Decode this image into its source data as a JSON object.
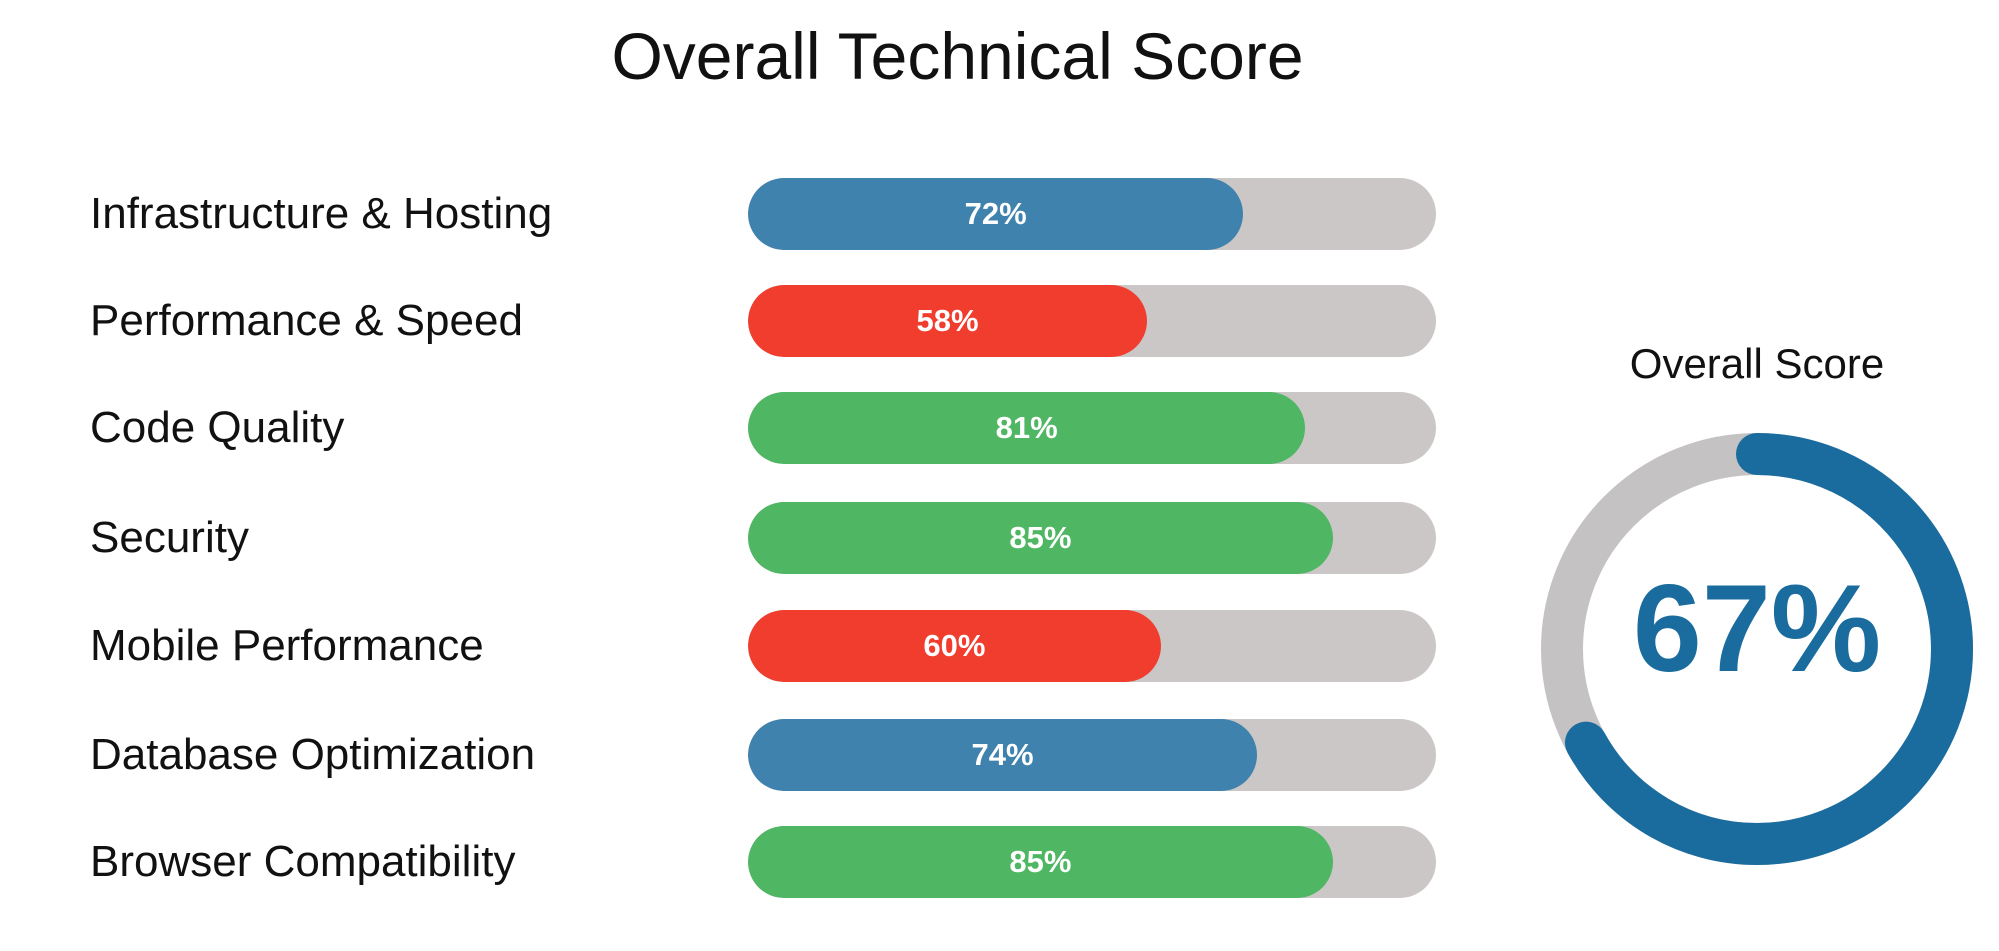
{
  "chart_data": [
    {
      "type": "bar",
      "orientation": "horizontal",
      "title": "Overall Technical Score",
      "categories": [
        "Infrastructure & Hosting",
        "Performance & Speed",
        "Code Quality",
        "Security",
        "Mobile Performance",
        "Database Optimization",
        "Browser Compatibility"
      ],
      "values": [
        72,
        58,
        81,
        85,
        60,
        74,
        85
      ],
      "value_labels": [
        "72%",
        "58%",
        "81%",
        "85%",
        "60%",
        "74%",
        "85%"
      ],
      "bar_colors": [
        "#3f82ad",
        "#f03d2e",
        "#4fb663",
        "#4fb663",
        "#f03d2e",
        "#3f82ad",
        "#4fb663"
      ],
      "track_color": "#cbc7c6",
      "xlim": [
        0,
        100
      ],
      "grid": false
    },
    {
      "type": "pie",
      "style": "donut",
      "title": "Overall Score",
      "value": 67,
      "value_label": "67%",
      "max": 100,
      "fill_color": "#1a6c9e",
      "track_color": "#c4c2c2"
    }
  ]
}
